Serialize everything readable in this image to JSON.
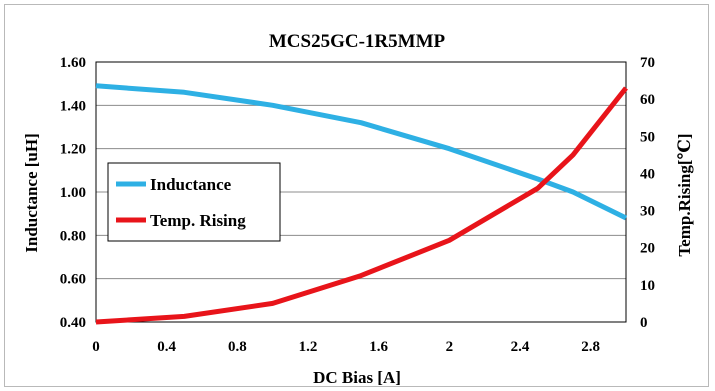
{
  "chart_data": {
    "type": "line",
    "title": "MCS25GC-1R5MMP",
    "xlabel": "DC Bias [A]",
    "ylabel": "Inductance [uH]",
    "y2label": "Temp.Rising[℃]",
    "xlim": [
      0,
      3.0
    ],
    "ylim": [
      0.4,
      1.6
    ],
    "y2lim": [
      0,
      70
    ],
    "x_ticks": [
      "0",
      "0.4",
      "0.8",
      "1.2",
      "1.6",
      "2",
      "2.4",
      "2.8"
    ],
    "x_tick_values": [
      0,
      0.4,
      0.8,
      1.2,
      1.6,
      2.0,
      2.4,
      2.8
    ],
    "y_ticks": [
      "0.40",
      "0.60",
      "0.80",
      "1.00",
      "1.20",
      "1.40",
      "1.60"
    ],
    "y_tick_values": [
      0.4,
      0.6,
      0.8,
      1.0,
      1.2,
      1.4,
      1.6
    ],
    "y2_ticks": [
      "0",
      "10",
      "20",
      "30",
      "40",
      "50",
      "60",
      "70"
    ],
    "y2_tick_values": [
      0,
      10,
      20,
      30,
      40,
      50,
      60,
      70
    ],
    "grid": true,
    "legend_position": "middle-left",
    "series": [
      {
        "name": "Inductance",
        "axis": "left",
        "color": "#2eb0e4",
        "x": [
          0,
          0.5,
          1.0,
          1.5,
          2.0,
          2.5,
          2.7,
          3.0
        ],
        "y": [
          1.49,
          1.46,
          1.4,
          1.32,
          1.2,
          1.06,
          1.0,
          0.88
        ]
      },
      {
        "name": "Temp. Rising",
        "axis": "right",
        "color": "#e8141a",
        "x": [
          0,
          0.5,
          1.0,
          1.5,
          2.0,
          2.5,
          2.7,
          3.0
        ],
        "y": [
          0,
          1.5,
          5,
          12.5,
          22,
          36,
          45,
          63
        ]
      }
    ]
  }
}
